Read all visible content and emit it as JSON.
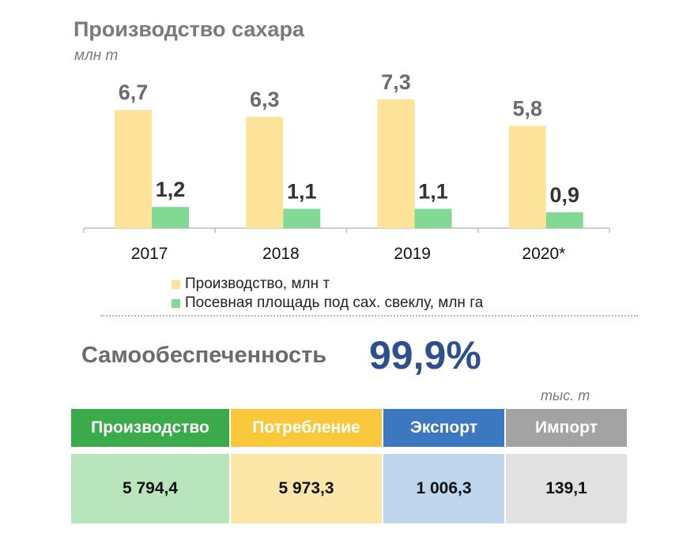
{
  "title": "Производство сахара",
  "subtitle": "млн т",
  "chart_data": {
    "type": "bar",
    "title": "Производство сахара",
    "categories": [
      "2017",
      "2018",
      "2019",
      "2020*"
    ],
    "series": [
      {
        "name": "Производство, млн т",
        "values": [
          6.7,
          6.3,
          7.3,
          5.8
        ],
        "labels": [
          "6,7",
          "6,3",
          "7,3",
          "5,8"
        ],
        "color": "#fde29a"
      },
      {
        "name": "Посевная площадь под сах. свеклу, млн га",
        "values": [
          1.2,
          1.1,
          1.1,
          0.9
        ],
        "labels": [
          "1,2",
          "1,1",
          "1,1",
          "0,9"
        ],
        "color": "#82d993"
      }
    ],
    "ylim": [
      0,
      8.5
    ],
    "grid": false,
    "legend_position": "bottom"
  },
  "self_sufficiency": {
    "label": "Самообеспеченность",
    "value": "99,9%"
  },
  "table": {
    "units": "тыс. т",
    "columns": [
      {
        "header": "Производство",
        "value": "5 794,4",
        "header_color": "#3aaa4b",
        "value_color": "#b9e5bd"
      },
      {
        "header": "Потребление",
        "value": "5 973,3",
        "header_color": "#f9c93b",
        "value_color": "#fde7a8"
      },
      {
        "header": "Экспорт",
        "value": "1 006,3",
        "header_color": "#3c78c0",
        "value_color": "#bdd6ee"
      },
      {
        "header": "Импорт",
        "value": "139,1",
        "header_color": "#a3a3a3",
        "value_color": "#e1e1e1"
      }
    ]
  }
}
